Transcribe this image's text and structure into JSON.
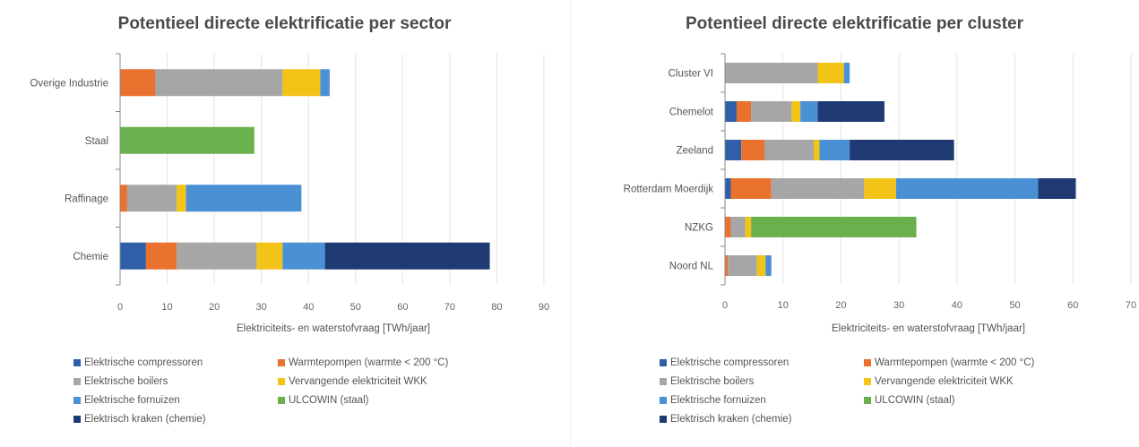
{
  "segment_colors": {
    "Elektrische compressoren": "#2e5fa8",
    "Warmtepompen (warmte < 200 °C)": "#e8722e",
    "Elektrische boilers": "#a6a6a6",
    "Vervangende elektriciteit WKK": "#f2c418",
    "Elektrische fornuizen": "#4a90d4",
    "ULCOWIN (staal)": "#6ab04c",
    "Elektrisch kraken (chemie)": "#1f3a73"
  },
  "chart_data": [
    {
      "type": "bar",
      "orientation": "horizontal",
      "stacked": true,
      "title": "Potentieel directe elektrificatie per sector",
      "xlabel": "Elektriciteits- en waterstofvraag [TWh/jaar]",
      "ylabel": "",
      "xlim": [
        0,
        90
      ],
      "xticks": [
        0,
        10,
        20,
        30,
        40,
        50,
        60,
        70,
        80,
        90
      ],
      "grid": "vertical",
      "legend_position": "bottom",
      "categories": [
        "Chemie",
        "Raffinage",
        "Staal",
        "Overige Industrie"
      ],
      "series": [
        {
          "name": "Elektrische compressoren",
          "values": [
            5.5,
            0,
            0,
            0
          ]
        },
        {
          "name": "Warmtepompen (warmte < 200 °C)",
          "values": [
            6.5,
            1.5,
            0,
            7.5
          ]
        },
        {
          "name": "Elektrische boilers",
          "values": [
            17,
            10.5,
            0,
            27
          ]
        },
        {
          "name": "Vervangende elektriciteit WKK",
          "values": [
            5.5,
            2,
            0,
            8
          ]
        },
        {
          "name": "Elektrische fornuizen",
          "values": [
            9,
            24.5,
            0,
            2
          ]
        },
        {
          "name": "ULCOWIN (staal)",
          "values": [
            0,
            0,
            28.5,
            0
          ]
        },
        {
          "name": "Elektrisch kraken (chemie)",
          "values": [
            35,
            0,
            0,
            0
          ]
        }
      ]
    },
    {
      "type": "bar",
      "orientation": "horizontal",
      "stacked": true,
      "title": "Potentieel directe elektrificatie per cluster",
      "xlabel": "Elektriciteits- en waterstofvraag [TWh/jaar]",
      "ylabel": "",
      "xlim": [
        0,
        70
      ],
      "xticks": [
        0,
        10,
        20,
        30,
        40,
        50,
        60,
        70
      ],
      "grid": "vertical",
      "legend_position": "bottom",
      "categories": [
        "Noord NL",
        "NZKG",
        "Rotterdam Moerdijk",
        "Zeeland",
        "Chemelot",
        "Cluster VI"
      ],
      "series": [
        {
          "name": "Elektrische compressoren",
          "values": [
            0,
            0,
            1,
            2.8,
            2,
            0
          ]
        },
        {
          "name": "Warmtepompen (warmte < 200 °C)",
          "values": [
            0.5,
            1,
            7,
            4,
            2.5,
            0
          ]
        },
        {
          "name": "Elektrische boilers",
          "values": [
            5,
            2.5,
            16,
            8.5,
            7,
            16
          ]
        },
        {
          "name": "Vervangende elektriciteit WKK",
          "values": [
            1.5,
            1,
            5.5,
            1,
            1.5,
            4.5
          ]
        },
        {
          "name": "Elektrische fornuizen",
          "values": [
            1,
            0,
            24.5,
            5.2,
            3,
            1
          ]
        },
        {
          "name": "ULCOWIN (staal)",
          "values": [
            0,
            28.5,
            0,
            0,
            0,
            0
          ]
        },
        {
          "name": "Elektrisch kraken (chemie)",
          "values": [
            0,
            0,
            6.5,
            18,
            11.5,
            0
          ]
        }
      ]
    }
  ]
}
